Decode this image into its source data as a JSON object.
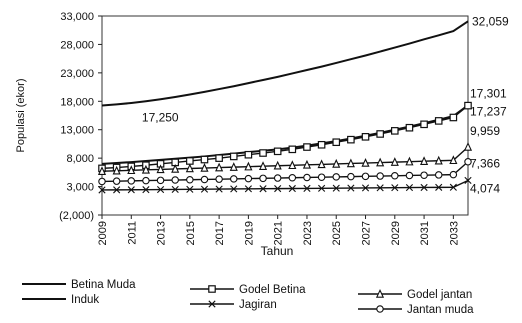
{
  "chart_data": {
    "type": "line",
    "xlabel": "Tahun",
    "ylabel": "Populasi (ekor)",
    "ylim": [
      -2000,
      33000
    ],
    "yticks": [
      -2000,
      3000,
      8000,
      13000,
      18000,
      23000,
      28000,
      33000
    ],
    "ytick_labels": [
      "(2,000)",
      "3,000",
      "8,000",
      "13,000",
      "18,000",
      "23,000",
      "28,000",
      "33,000"
    ],
    "x": [
      2009,
      2010,
      2011,
      2012,
      2013,
      2014,
      2015,
      2016,
      2017,
      2018,
      2019,
      2020,
      2021,
      2022,
      2023,
      2024,
      2025,
      2026,
      2027,
      2028,
      2029,
      2030,
      2031,
      2032,
      2033,
      2034
    ],
    "xticks": [
      2009,
      2011,
      2013,
      2015,
      2017,
      2019,
      2021,
      2023,
      2025,
      2027,
      2029,
      2031,
      2033
    ],
    "xtick_labels": [
      "2009",
      "2011",
      "2013",
      "2015",
      "2017",
      "2019",
      "2021",
      "2023",
      "2025",
      "2027",
      "2029",
      "2031",
      "2033"
    ],
    "legend_position": "bottom",
    "series": [
      {
        "name": "Betina Muda",
        "marker": "none",
        "start_label": "17,250",
        "end_label": "32,059",
        "values": [
          17250,
          17450,
          17700,
          18000,
          18350,
          18750,
          19200,
          19650,
          20150,
          20650,
          21200,
          21750,
          22300,
          22900,
          23500,
          24100,
          24750,
          25400,
          26050,
          26750,
          27450,
          28150,
          28900,
          29600,
          30350,
          32059
        ]
      },
      {
        "name": "Induk",
        "marker": "none",
        "end_label": "17,301",
        "values": [
          7000,
          7150,
          7300,
          7500,
          7700,
          7900,
          8100,
          8300,
          8550,
          8800,
          9050,
          9300,
          9550,
          9850,
          10200,
          10600,
          11000,
          11450,
          11950,
          12450,
          13000,
          13550,
          14150,
          14750,
          15400,
          17301
        ]
      },
      {
        "name": "Godel Betina",
        "marker": "square",
        "end_label": "17,237",
        "values": [
          6200,
          6350,
          6550,
          6750,
          7000,
          7250,
          7500,
          7750,
          8000,
          8300,
          8600,
          8900,
          9200,
          9550,
          9950,
          10350,
          10800,
          11250,
          11750,
          12250,
          12800,
          13350,
          13950,
          14550,
          15150,
          17237
        ]
      },
      {
        "name": "Jagiran",
        "marker": "x",
        "end_label": "4,074",
        "values": [
          2400,
          2420,
          2440,
          2460,
          2480,
          2500,
          2520,
          2540,
          2560,
          2580,
          2600,
          2620,
          2640,
          2660,
          2680,
          2700,
          2720,
          2740,
          2760,
          2780,
          2800,
          2820,
          2840,
          2860,
          2880,
          4074
        ]
      },
      {
        "name": "Godel jantan",
        "marker": "triangle",
        "end_label": "9,959",
        "values": [
          5700,
          5780,
          5860,
          5940,
          6020,
          6100,
          6180,
          6260,
          6340,
          6420,
          6500,
          6580,
          6660,
          6740,
          6820,
          6900,
          6980,
          7060,
          7140,
          7220,
          7300,
          7380,
          7460,
          7540,
          7620,
          9959
        ]
      },
      {
        "name": "Jantan muda",
        "marker": "circle",
        "end_label": "7,366",
        "values": [
          3900,
          3950,
          4000,
          4050,
          4100,
          4150,
          4200,
          4250,
          4300,
          4350,
          4400,
          4450,
          4500,
          4550,
          4600,
          4650,
          4700,
          4750,
          4800,
          4850,
          4900,
          4950,
          5000,
          5050,
          5100,
          7366
        ]
      }
    ]
  }
}
